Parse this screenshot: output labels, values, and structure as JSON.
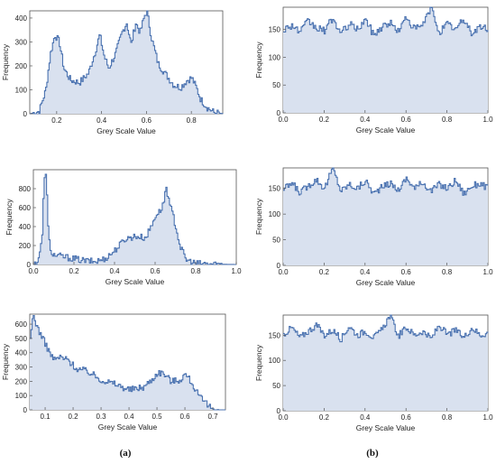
{
  "figure": {
    "panel_labels": [
      "(a)",
      "(b)"
    ]
  },
  "colors": {
    "line": "#4a72b0",
    "fill": "#d9e1ef",
    "frame": "#555555"
  },
  "chart_data": [
    {
      "type": "area",
      "id": "a1",
      "xlabel": "Grey Scale Value",
      "ylabel": "Frequency",
      "xlim": [
        0.08,
        0.94
      ],
      "ylim": [
        0,
        430
      ],
      "xticks": [
        0.2,
        0.4,
        0.6,
        0.8
      ],
      "yticks": [
        0,
        100,
        200,
        300,
        400
      ],
      "x": [
        0.08,
        0.12,
        0.15,
        0.17,
        0.19,
        0.21,
        0.23,
        0.26,
        0.3,
        0.34,
        0.37,
        0.39,
        0.41,
        0.43,
        0.46,
        0.49,
        0.51,
        0.53,
        0.55,
        0.57,
        0.59,
        0.6,
        0.62,
        0.65,
        0.68,
        0.72,
        0.75,
        0.78,
        0.8,
        0.82,
        0.84,
        0.87,
        0.9,
        0.94
      ],
      "y": [
        0,
        10,
        100,
        250,
        330,
        300,
        190,
        140,
        130,
        170,
        260,
        330,
        240,
        190,
        250,
        340,
        380,
        290,
        380,
        340,
        410,
        430,
        320,
        210,
        170,
        120,
        110,
        140,
        150,
        110,
        60,
        25,
        5,
        0
      ]
    },
    {
      "type": "area",
      "id": "a2",
      "xlabel": "Grey Scale Value",
      "ylabel": "Frequency",
      "xlim": [
        0,
        1
      ],
      "ylim": [
        0,
        1000
      ],
      "xticks": [
        0.0,
        0.2,
        0.4,
        0.6,
        0.8,
        1.0
      ],
      "yticks": [
        0,
        200,
        400,
        600,
        800
      ],
      "x": [
        0.0,
        0.02,
        0.04,
        0.05,
        0.06,
        0.07,
        0.08,
        0.1,
        0.15,
        0.2,
        0.25,
        0.3,
        0.35,
        0.4,
        0.45,
        0.5,
        0.55,
        0.58,
        0.6,
        0.62,
        0.64,
        0.65,
        0.66,
        0.68,
        0.7,
        0.72,
        0.75,
        0.8,
        0.9,
        1.0
      ],
      "y": [
        0,
        40,
        250,
        850,
        1000,
        400,
        150,
        100,
        80,
        60,
        40,
        30,
        60,
        150,
        270,
        300,
        280,
        410,
        520,
        560,
        640,
        850,
        700,
        560,
        400,
        200,
        50,
        10,
        3,
        0
      ]
    },
    {
      "type": "area",
      "id": "a3",
      "xlabel": "Grey Scale Value",
      "ylabel": "Frequency",
      "xlim": [
        0.045,
        0.745
      ],
      "ylim": [
        0,
        670
      ],
      "xticks": [
        0.1,
        0.2,
        0.3,
        0.4,
        0.5,
        0.6,
        0.7
      ],
      "yticks": [
        0,
        100,
        200,
        300,
        400,
        500,
        600
      ],
      "x": [
        0.045,
        0.055,
        0.07,
        0.09,
        0.11,
        0.13,
        0.15,
        0.18,
        0.21,
        0.25,
        0.3,
        0.35,
        0.4,
        0.45,
        0.48,
        0.5,
        0.52,
        0.55,
        0.58,
        0.6,
        0.62,
        0.65,
        0.68,
        0.7,
        0.72
      ],
      "y": [
        480,
        670,
        580,
        500,
        420,
        350,
        370,
        350,
        290,
        270,
        210,
        180,
        140,
        160,
        210,
        260,
        260,
        200,
        210,
        250,
        200,
        90,
        30,
        10,
        0
      ]
    },
    {
      "type": "area",
      "id": "b1",
      "xlabel": "Grey Scale Value",
      "ylabel": "Frequency",
      "xlim": [
        0,
        1
      ],
      "ylim": [
        0,
        190
      ],
      "xticks": [
        0.0,
        0.2,
        0.4,
        0.6,
        0.8,
        1.0
      ],
      "yticks": [
        0,
        50,
        100,
        150
      ],
      "x": [
        0,
        0.04,
        0.08,
        0.12,
        0.16,
        0.2,
        0.24,
        0.28,
        0.32,
        0.36,
        0.4,
        0.44,
        0.48,
        0.52,
        0.56,
        0.6,
        0.64,
        0.68,
        0.72,
        0.76,
        0.8,
        0.84,
        0.88,
        0.92,
        0.96,
        1.0
      ],
      "y": [
        150,
        158,
        145,
        165,
        152,
        148,
        170,
        142,
        160,
        150,
        168,
        140,
        155,
        162,
        147,
        172,
        150,
        158,
        190,
        145,
        160,
        150,
        168,
        143,
        155,
        150
      ]
    },
    {
      "type": "area",
      "id": "b2",
      "xlabel": "Grey Scale Value",
      "ylabel": "Frequency",
      "xlim": [
        0,
        1
      ],
      "ylim": [
        0,
        190
      ],
      "xticks": [
        0.0,
        0.2,
        0.4,
        0.6,
        0.8,
        1.0
      ],
      "yticks": [
        0,
        50,
        100,
        150
      ],
      "x": [
        0,
        0.04,
        0.08,
        0.12,
        0.16,
        0.2,
        0.24,
        0.28,
        0.32,
        0.36,
        0.4,
        0.44,
        0.48,
        0.52,
        0.56,
        0.6,
        0.64,
        0.68,
        0.72,
        0.76,
        0.8,
        0.84,
        0.88,
        0.92,
        0.96,
        1.0
      ],
      "y": [
        148,
        160,
        142,
        155,
        168,
        150,
        190,
        145,
        158,
        150,
        165,
        140,
        152,
        160,
        147,
        170,
        150,
        162,
        145,
        158,
        150,
        166,
        140,
        155,
        160,
        150
      ]
    },
    {
      "type": "area",
      "id": "b3",
      "xlabel": "Grey Scale Value",
      "ylabel": "Frequency",
      "xlim": [
        0,
        1
      ],
      "ylim": [
        0,
        190
      ],
      "xticks": [
        0.0,
        0.2,
        0.4,
        0.6,
        0.8,
        1.0
      ],
      "yticks": [
        0,
        50,
        100,
        150
      ],
      "x": [
        0,
        0.04,
        0.08,
        0.12,
        0.16,
        0.2,
        0.24,
        0.28,
        0.32,
        0.36,
        0.4,
        0.44,
        0.48,
        0.52,
        0.56,
        0.6,
        0.64,
        0.68,
        0.72,
        0.76,
        0.8,
        0.84,
        0.88,
        0.92,
        0.96,
        1.0
      ],
      "y": [
        152,
        165,
        145,
        158,
        170,
        150,
        160,
        142,
        168,
        150,
        158,
        145,
        160,
        190,
        148,
        165,
        150,
        158,
        142,
        170,
        150,
        160,
        145,
        165,
        150,
        155
      ]
    }
  ]
}
